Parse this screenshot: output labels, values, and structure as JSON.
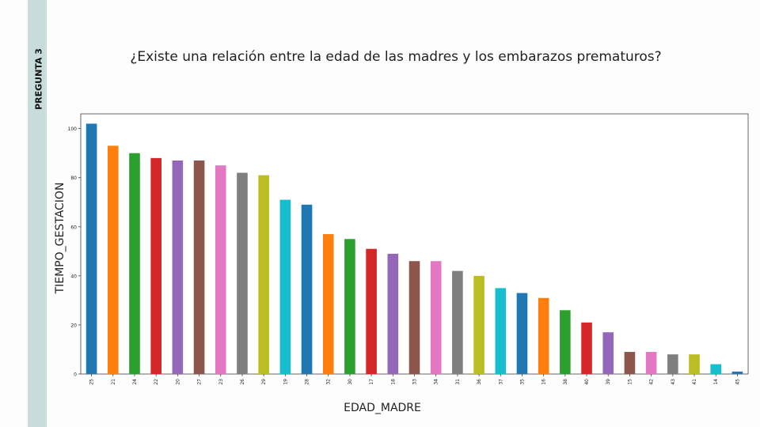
{
  "slide": {
    "side_label": "PREGUNTA 3",
    "title": "¿Existe una relación entre la edad de las madres y los embarazos prematuros?"
  },
  "chart_data": {
    "type": "bar",
    "xlabel": "EDAD_MADRE",
    "ylabel": "TIEMPO_GESTACION",
    "ylim": [
      0,
      106
    ],
    "yticks": [
      0,
      20,
      40,
      60,
      80,
      100
    ],
    "categories": [
      "25",
      "21",
      "24",
      "22",
      "20",
      "27",
      "23",
      "26",
      "29",
      "19",
      "28",
      "32",
      "30",
      "17",
      "18",
      "33",
      "34",
      "31",
      "36",
      "37",
      "35",
      "16",
      "38",
      "40",
      "39",
      "15",
      "42",
      "43",
      "41",
      "14",
      "45"
    ],
    "values": [
      102,
      93,
      90,
      88,
      87,
      87,
      85,
      82,
      81,
      71,
      69,
      57,
      55,
      51,
      49,
      46,
      46,
      42,
      40,
      35,
      33,
      31,
      26,
      21,
      17,
      9,
      9,
      8,
      8,
      4,
      1
    ],
    "colors": [
      "#1f77b4",
      "#ff7f0e",
      "#2ca02c",
      "#d62728",
      "#9467bd",
      "#8c564b",
      "#e377c2",
      "#7f7f7f",
      "#bcbd22",
      "#17becf"
    ],
    "grid": false,
    "legend": "none"
  }
}
